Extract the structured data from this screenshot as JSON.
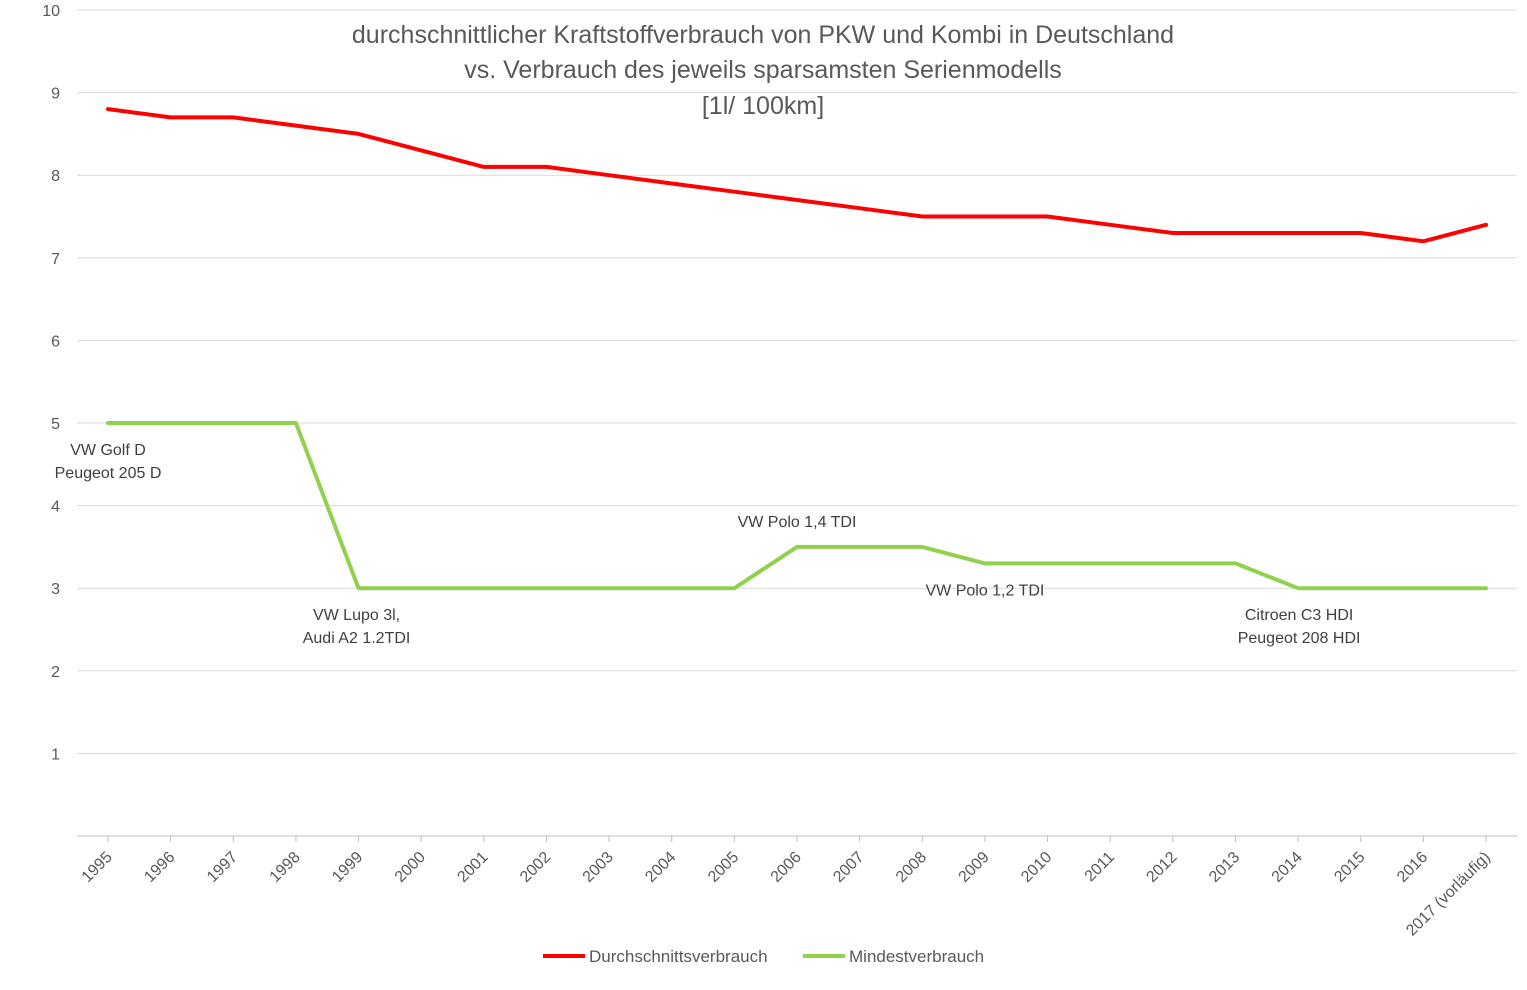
{
  "chart_data": {
    "type": "line",
    "title": [
      "durchschnittlicher Kraftstoffverbrauch von PKW und Kombi in Deutschland",
      "vs. Verbrauch des jeweils sparsamsten Serienmodells",
      "[1l/ 100km]"
    ],
    "xlabel": "",
    "ylabel": "",
    "ylim": [
      0,
      10
    ],
    "yticks": [
      "1",
      "2",
      "3",
      "4",
      "5",
      "6",
      "7",
      "8",
      "9",
      "10"
    ],
    "grid": true,
    "legend_position": "bottom",
    "categories": [
      "1995",
      "1996",
      "1997",
      "1998",
      "1999",
      "2000",
      "2001",
      "2002",
      "2003",
      "2004",
      "2005",
      "2006",
      "2007",
      "2008",
      "2009",
      "2010",
      "2011",
      "2012",
      "2013",
      "2014",
      "2015",
      "2016",
      "2017 (vorläufig)"
    ],
    "series": [
      {
        "name": "Durchschnittsverbrauch",
        "color": "#ff0000",
        "values": [
          8.8,
          8.7,
          8.7,
          8.6,
          8.5,
          8.3,
          8.1,
          8.1,
          8.0,
          7.9,
          7.8,
          7.7,
          7.6,
          7.5,
          7.5,
          7.5,
          7.4,
          7.3,
          7.3,
          7.3,
          7.3,
          7.2,
          7.4
        ]
      },
      {
        "name": "Mindestverbrauch",
        "color": "#92d050",
        "values": [
          5.0,
          5.0,
          5.0,
          5.0,
          3.0,
          3.0,
          3.0,
          3.0,
          3.0,
          3.0,
          3.0,
          3.5,
          3.5,
          3.5,
          3.3,
          3.3,
          3.3,
          3.3,
          3.3,
          3.0,
          3.0,
          3.0,
          3.0
        ]
      }
    ],
    "annotations": [
      {
        "category": "1995",
        "value": 5.0,
        "lines": [
          "VW Golf D",
          "Peugeot 205 D"
        ],
        "placement": "below"
      },
      {
        "category": "1999",
        "value": 3.0,
        "lines": [
          "VW Lupo 3l,",
          "Audi A2 1.2TDI"
        ],
        "placement": "below"
      },
      {
        "category": "2006",
        "value": 3.5,
        "lines": [
          "VW Polo 1,4 TDI"
        ],
        "placement": "above"
      },
      {
        "category": "2009",
        "value": 3.3,
        "lines": [
          "VW Polo 1,2 TDI"
        ],
        "placement": "below"
      },
      {
        "category": "2014",
        "value": 3.0,
        "lines": [
          "Citroen C3 HDI",
          "Peugeot 208 HDI"
        ],
        "placement": "below"
      }
    ],
    "gridline_color": "#d9d9d9",
    "axis_color": "#bfbfbf"
  }
}
